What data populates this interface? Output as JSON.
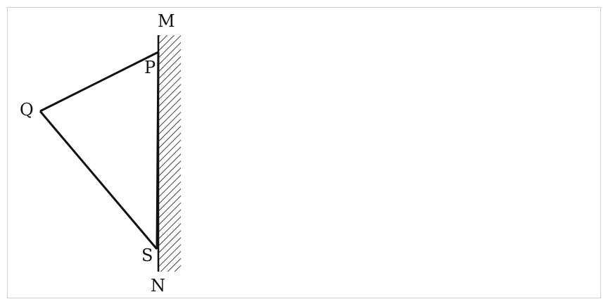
{
  "diagram": {
    "labels": {
      "M": "M",
      "N": "N",
      "P": "P",
      "Q": "Q",
      "S": "S"
    },
    "colors": {
      "stroke": "#111111",
      "hatch": "#111111",
      "frame": "#cfcfcf",
      "background": "#ffffff"
    }
  }
}
